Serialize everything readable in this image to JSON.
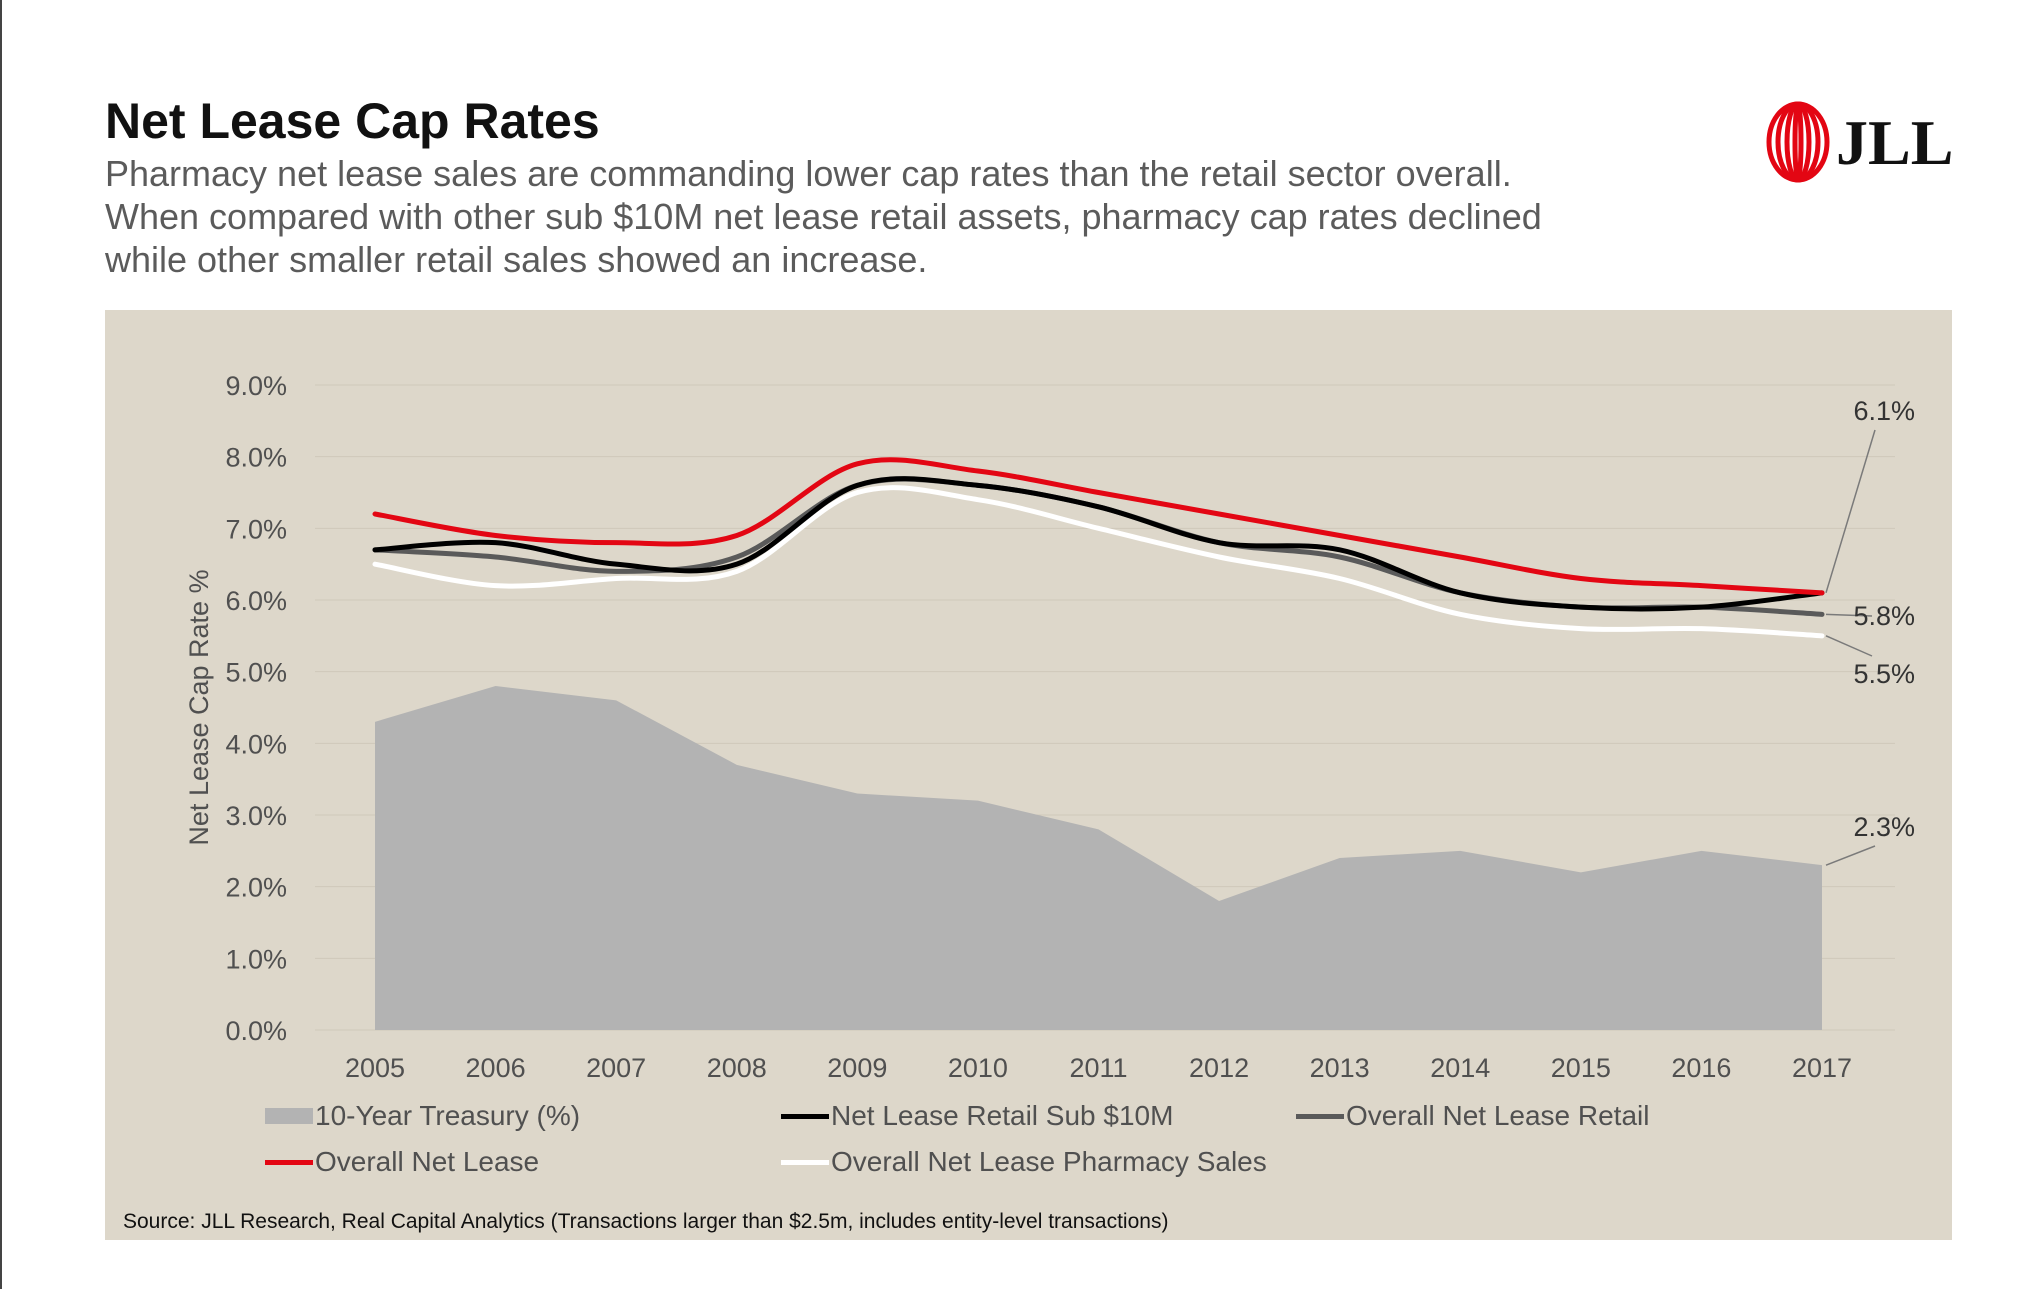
{
  "header": {
    "title": "Net Lease Cap Rates",
    "subtitle_lines": [
      "Pharmacy net lease sales are commanding lower cap rates than the retail sector overall.",
      "When compared with other sub $10M net lease retail assets, pharmacy cap rates declined",
      "while other smaller retail sales showed an increase."
    ]
  },
  "logo": {
    "text": "JLL",
    "color": "#e30613"
  },
  "source": "Source: JLL Research, Real Capital Analytics (Transactions larger than $2.5m, includes entity-level transactions)",
  "chart_data": {
    "type": "line",
    "title": "",
    "xlabel": "",
    "ylabel": "Net Lease Cap Rate %",
    "ylim": [
      0,
      9
    ],
    "ytick_labels": [
      "0.0%",
      "1.0%",
      "2.0%",
      "3.0%",
      "4.0%",
      "5.0%",
      "6.0%",
      "7.0%",
      "8.0%",
      "9.0%"
    ],
    "ytick_values": [
      0,
      1,
      2,
      3,
      4,
      5,
      6,
      7,
      8,
      9
    ],
    "grid": "horizontal",
    "legend_position": "bottom",
    "categories": [
      "2005",
      "2006",
      "2007",
      "2008",
      "2009",
      "2010",
      "2011",
      "2012",
      "2013",
      "2014",
      "2015",
      "2016",
      "2017"
    ],
    "series": [
      {
        "name": "10-Year Treasury (%)",
        "kind": "area",
        "color": "#b3b3b3",
        "values": [
          4.3,
          4.8,
          4.6,
          3.7,
          3.3,
          3.2,
          2.8,
          1.8,
          2.4,
          2.5,
          2.2,
          2.5,
          2.3
        ]
      },
      {
        "name": "Net Lease Retail Sub $10M",
        "kind": "line",
        "color": "#000000",
        "values": [
          6.7,
          6.8,
          6.5,
          6.5,
          7.6,
          7.6,
          7.3,
          6.8,
          6.7,
          6.1,
          5.9,
          5.9,
          6.1
        ]
      },
      {
        "name": "Overall Net Lease Retail",
        "kind": "line",
        "color": "#5a5a5a",
        "values": [
          6.7,
          6.6,
          6.4,
          6.6,
          7.6,
          7.6,
          7.3,
          6.8,
          6.6,
          6.1,
          5.9,
          5.9,
          5.8
        ]
      },
      {
        "name": "Overall Net Lease",
        "kind": "line",
        "color": "#e30613",
        "values": [
          7.2,
          6.9,
          6.8,
          6.9,
          7.9,
          7.8,
          7.5,
          7.2,
          6.9,
          6.6,
          6.3,
          6.2,
          6.1
        ]
      },
      {
        "name": "Overall Net Lease Pharmacy Sales",
        "kind": "line",
        "color": "#ffffff",
        "values": [
          6.5,
          6.2,
          6.3,
          6.4,
          7.5,
          7.4,
          7.0,
          6.6,
          6.3,
          5.8,
          5.6,
          5.6,
          5.5
        ]
      }
    ],
    "end_labels": [
      "6.1%",
      "5.8%",
      "5.5%",
      "2.3%"
    ]
  }
}
